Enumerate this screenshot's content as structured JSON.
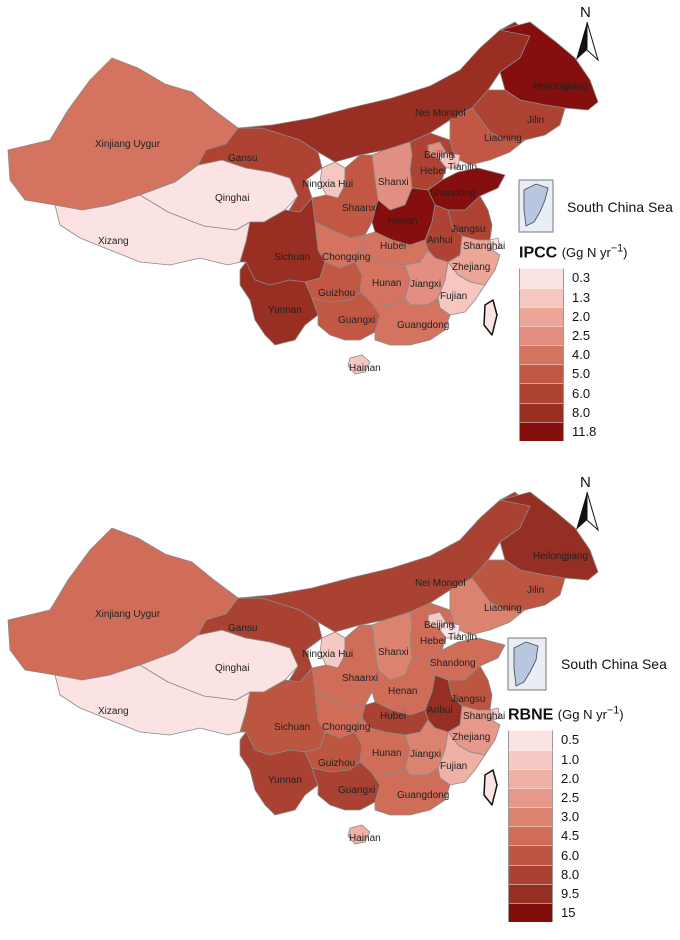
{
  "maps": [
    {
      "legend_name": "IPCC",
      "legend_unit": "(Gg N yr",
      "legend_unit_sup": "−1",
      "legend_unit_close": ")",
      "north_label": "N",
      "south_china_sea_label": "South China Sea",
      "legend_classes": [
        "0.3",
        "1.3",
        "2.0",
        "2.5",
        "4.0",
        "5.0",
        "6.0",
        "8.0",
        "11.8"
      ],
      "legend_colors": [
        "#fbe3e3",
        "#f6c6c0",
        "#eba698",
        "#e28e80",
        "#d4735f",
        "#c25844",
        "#ae4333",
        "#992e22",
        "#850e0e"
      ],
      "provinces": {
        "Xinjiang Uygur": 4,
        "Xizang": 0,
        "Qinghai": 0,
        "Gansu": 6,
        "Nei Mongol": 7,
        "Heilongjiang": 8,
        "Jilin": 6,
        "Liaoning": 5,
        "Beijing": 3,
        "Tianjin": 1,
        "Hebei": 6,
        "Shanxi": 3,
        "Shaanxi": 5,
        "Ningxia Hui": 1,
        "Shandong": 8,
        "Henan": 8,
        "Jiangsu": 6,
        "Anhui": 6,
        "Shanghai": 0,
        "Hubei": 4,
        "Chongqing": 4,
        "Sichuan": 7,
        "Yunnan": 7,
        "Guizhou": 5,
        "Hunan": 4,
        "Jiangxi": 3,
        "Zhejiang": 2,
        "Fujian": 1,
        "Guangxi": 5,
        "Guangdong": 4,
        "Hainan": 1,
        "Taiwan": 0
      }
    },
    {
      "legend_name": "RBNE",
      "legend_unit": "(Gg N yr",
      "legend_unit_sup": "−1",
      "legend_unit_close": ")",
      "north_label": "N",
      "south_china_sea_label": "South China Sea",
      "legend_classes": [
        "0.5",
        "1.0",
        "2.0",
        "2.5",
        "3.0",
        "4.5",
        "6.0",
        "8.0",
        "9.5",
        "15"
      ],
      "legend_colors": [
        "#fbe3e3",
        "#f6c9c4",
        "#efb0a6",
        "#e6998b",
        "#dc8370",
        "#cf6d58",
        "#bd5641",
        "#a94232",
        "#962f23",
        "#810d0d"
      ],
      "provinces": {
        "Xinjiang Uygur": 5,
        "Xizang": 0,
        "Qinghai": 0,
        "Gansu": 7,
        "Nei Mongol": 7,
        "Heilongjiang": 8,
        "Jilin": 6,
        "Liaoning": 4,
        "Beijing": 1,
        "Tianjin": 0,
        "Hebei": 5,
        "Shanxi": 4,
        "Shaanxi": 5,
        "Ningxia Hui": 1,
        "Shandong": 5,
        "Henan": 5,
        "Jiangsu": 6,
        "Anhui": 8,
        "Shanghai": 1,
        "Hubei": 7,
        "Chongqing": 5,
        "Sichuan": 6,
        "Yunnan": 7,
        "Guizhou": 6,
        "Hunan": 5,
        "Jiangxi": 4,
        "Zhejiang": 3,
        "Fujian": 2,
        "Guangxi": 7,
        "Guangdong": 5,
        "Hainan": 2,
        "Taiwan": 0
      }
    }
  ]
}
